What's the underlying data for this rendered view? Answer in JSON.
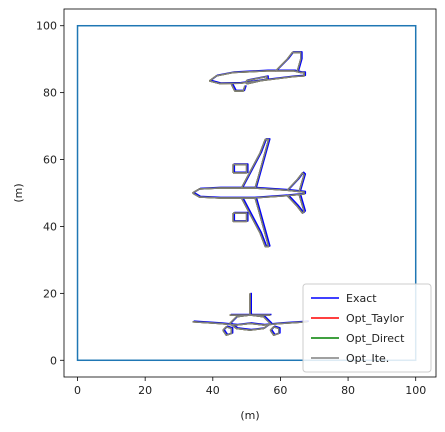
{
  "chart_data": {
    "type": "line",
    "title": "",
    "xlabel": "(m)",
    "ylabel": "(m)",
    "xlim": [
      -4,
      106
    ],
    "ylim": [
      -5,
      105
    ],
    "xticks": [
      0,
      20,
      40,
      60,
      80,
      100
    ],
    "yticks": [
      0,
      20,
      40,
      60,
      80,
      100
    ],
    "grid": false,
    "legend_position": "bottom-right",
    "domain_box": {
      "x": [
        0,
        100
      ],
      "y": [
        0,
        100
      ],
      "color": "#1f77b4"
    },
    "series": [
      {
        "name": "Exact",
        "color": "#0000ff"
      },
      {
        "name": "Opt_Taylor",
        "color": "#ff0000"
      },
      {
        "name": "Opt_Direct",
        "color": "#008000"
      },
      {
        "name": "Opt_Ite.",
        "color": "#808080"
      }
    ],
    "shapes": [
      {
        "name": "side-view-aircraft",
        "paths": [
          [
            [
              39,
              83.5
            ],
            [
              41,
              85
            ],
            [
              46,
              86
            ],
            [
              56,
              86.5
            ],
            [
              64,
              86.5
            ],
            [
              66,
              86
            ],
            [
              67,
              86
            ],
            [
              67,
              85
            ],
            [
              64,
              84.8
            ],
            [
              56,
              83.8
            ],
            [
              48,
              82.8
            ],
            [
              42,
              82.7
            ],
            [
              39,
              83.5
            ]
          ],
          [
            [
              58.5,
              86.4
            ],
            [
              62,
              90
            ],
            [
              63.5,
              92
            ],
            [
              66,
              92
            ],
            [
              66,
              90
            ],
            [
              65,
              86.4
            ]
          ],
          [
            [
              45.5,
              82.5
            ],
            [
              46.5,
              80.5
            ],
            [
              49,
              80.5
            ],
            [
              49.5,
              82
            ]
          ],
          [
            [
              50,
              82.6
            ],
            [
              56,
              84
            ],
            [
              56,
              84.8
            ],
            [
              50,
              83.6
            ],
            [
              50,
              82.6
            ]
          ]
        ]
      },
      {
        "name": "top-view-aircraft",
        "paths": [
          [
            [
              34,
              50
            ],
            [
              36,
              51.2
            ],
            [
              42,
              51.5
            ],
            [
              52,
              51.5
            ],
            [
              62,
              50.8
            ],
            [
              67,
              50.3
            ],
            [
              67,
              49.7
            ],
            [
              62,
              49.2
            ],
            [
              52,
              48.5
            ],
            [
              42,
              48.5
            ],
            [
              36,
              48.8
            ],
            [
              34,
              50
            ]
          ],
          [
            [
              48.5,
              51.5
            ],
            [
              54,
              62
            ],
            [
              55.5,
              66
            ],
            [
              56.5,
              66
            ],
            [
              53.5,
              55
            ],
            [
              52.5,
              51.5
            ]
          ],
          [
            [
              48.5,
              48.5
            ],
            [
              54,
              38
            ],
            [
              55.5,
              34
            ],
            [
              56.5,
              34
            ],
            [
              53.5,
              45
            ],
            [
              52.5,
              48.5
            ]
          ],
          [
            [
              62,
              50.8
            ],
            [
              65,
              54
            ],
            [
              66.5,
              56
            ],
            [
              67,
              55.5
            ],
            [
              65.5,
              50.3
            ]
          ],
          [
            [
              62,
              49.2
            ],
            [
              65,
              46
            ],
            [
              66.5,
              44
            ],
            [
              67,
              44.5
            ],
            [
              65.5,
              49.7
            ]
          ],
          [
            [
              46,
              56
            ],
            [
              46,
              58.5
            ],
            [
              50,
              58.5
            ],
            [
              50,
              56
            ],
            [
              46,
              56
            ]
          ],
          [
            [
              46,
              44
            ],
            [
              46,
              41.5
            ],
            [
              50,
              41.5
            ],
            [
              50,
              44
            ],
            [
              46,
              44
            ]
          ]
        ]
      },
      {
        "name": "front-view-aircraft",
        "paths": [
          [
            [
              34,
              11.5
            ],
            [
              42,
              11
            ],
            [
              47,
              10.5
            ],
            [
              51,
              11
            ],
            [
              55,
              10.5
            ],
            [
              60,
              11
            ],
            [
              68,
              11.5
            ]
          ],
          [
            [
              45,
              11
            ],
            [
              47,
              13
            ],
            [
              51,
              13.5
            ],
            [
              55,
              13
            ],
            [
              57,
              11
            ],
            [
              55,
              9.5
            ],
            [
              51,
              9
            ],
            [
              47,
              9.5
            ],
            [
              45,
              11
            ]
          ],
          [
            [
              51,
              13.5
            ],
            [
              51,
              20
            ]
          ],
          [
            [
              45,
              13.5
            ],
            [
              57,
              13.5
            ]
          ],
          [
            [
              43,
              9
            ],
            [
              44,
              7.5
            ],
            [
              45.5,
              8
            ],
            [
              45.5,
              9.5
            ],
            [
              44,
              10
            ],
            [
              43,
              9
            ]
          ],
          [
            [
              57,
              9
            ],
            [
              58,
              7.5
            ],
            [
              59.5,
              8
            ],
            [
              59.5,
              9.5
            ],
            [
              58,
              10
            ],
            [
              57,
              9
            ]
          ]
        ]
      }
    ]
  }
}
